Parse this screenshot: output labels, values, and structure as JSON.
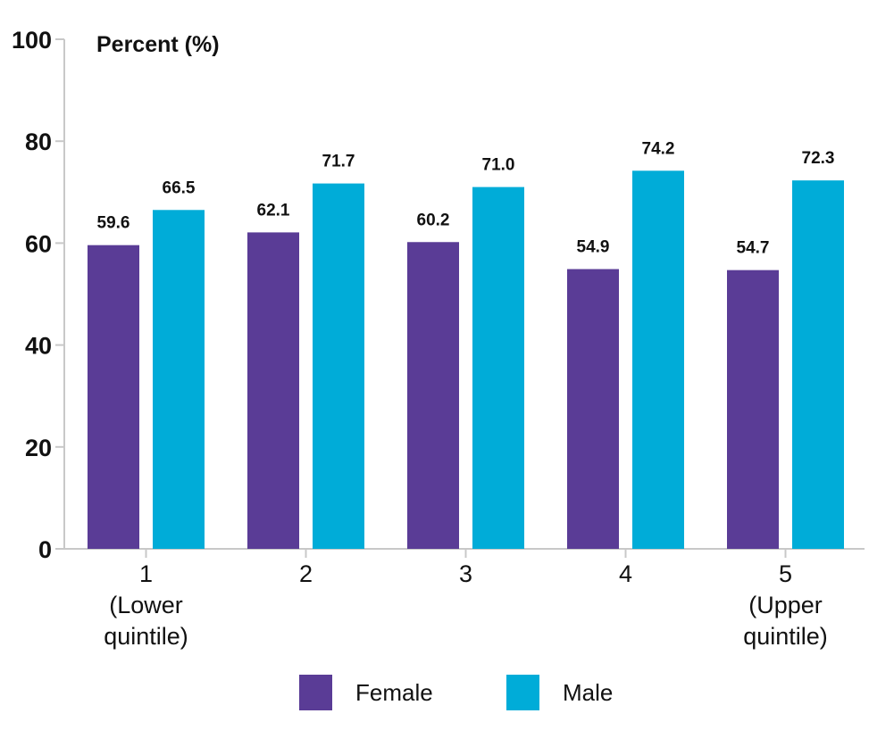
{
  "chart_data": {
    "type": "bar",
    "ylabel": "Percent (%)",
    "xlabel": "",
    "ylim": [
      0,
      100
    ],
    "yticks": [
      "0",
      "20",
      "40",
      "60",
      "80",
      "100"
    ],
    "categories": [
      [
        "1",
        "(Lower",
        "quintile)"
      ],
      [
        "2"
      ],
      [
        "3"
      ],
      [
        "4"
      ],
      [
        "5",
        "(Upper",
        "quintile)"
      ]
    ],
    "series": [
      {
        "name": "Female",
        "color": "#5a3c96",
        "values": [
          59.6,
          62.1,
          60.2,
          54.9,
          54.7
        ],
        "labels": [
          "59.6",
          "62.1",
          "60.2",
          "54.9",
          "54.7"
        ]
      },
      {
        "name": "Male",
        "color": "#00acd8",
        "values": [
          66.5,
          71.7,
          71.0,
          74.2,
          72.3
        ],
        "labels": [
          "66.5",
          "71.7",
          "71.0",
          "74.2",
          "72.3"
        ]
      }
    ],
    "legend_position": "bottom",
    "grid": false
  }
}
